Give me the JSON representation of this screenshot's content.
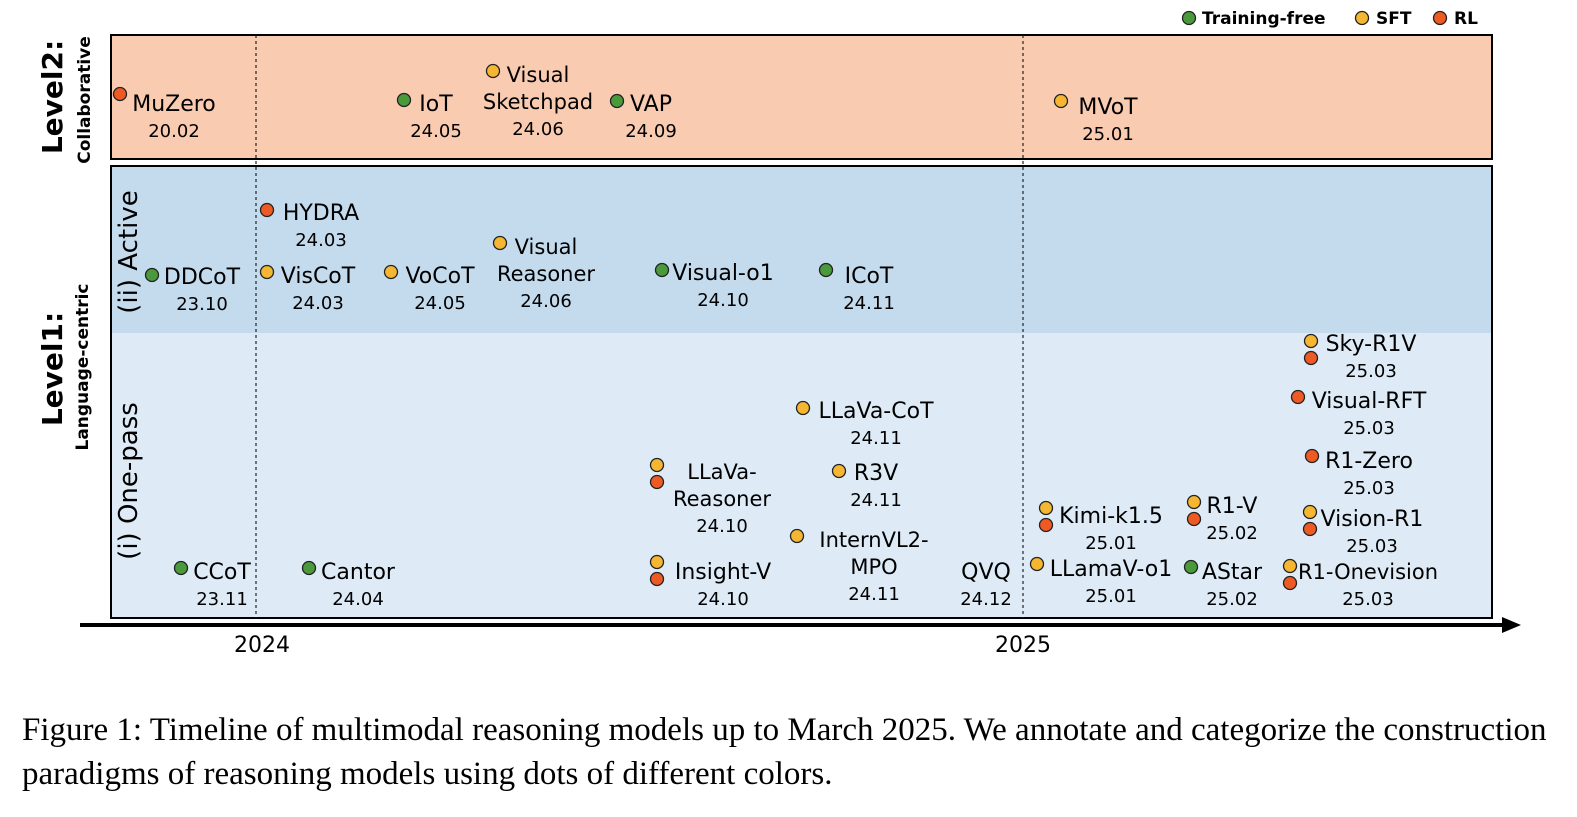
{
  "legend": [
    {
      "label": "Training-free",
      "color": "#4a9a3c"
    },
    {
      "label": "SFT",
      "color": "#f5b731"
    },
    {
      "label": "RL",
      "color": "#ee5a24"
    }
  ],
  "levels": {
    "level2": {
      "title": "Level2:",
      "subtitle": "Collaborative"
    },
    "level1": {
      "title": "Level1:",
      "subtitle": "Language-centric"
    }
  },
  "rows": {
    "active": "(ii) Active",
    "onepass": "(i) One-pass"
  },
  "axis": {
    "years": [
      "2024",
      "2025"
    ]
  },
  "colors": {
    "level2_bg": "#f9cbb0",
    "active_bg": "#c4dbee",
    "onepass_bg": "#deebf6"
  },
  "models": [
    {
      "name": "MuZero",
      "date": "20.02",
      "dots": [
        "RL"
      ]
    },
    {
      "name": "IoT",
      "date": "24.05",
      "dots": [
        "Training-free"
      ]
    },
    {
      "name": "Visual\nSketchpad",
      "date": "24.06",
      "dots": [
        "SFT"
      ]
    },
    {
      "name": "VAP",
      "date": "24.09",
      "dots": [
        "Training-free"
      ]
    },
    {
      "name": "MVoT",
      "date": "25.01",
      "dots": [
        "SFT"
      ]
    },
    {
      "name": "HYDRA",
      "date": "24.03",
      "dots": [
        "RL"
      ]
    },
    {
      "name": "DDCoT",
      "date": "23.10",
      "dots": [
        "Training-free"
      ]
    },
    {
      "name": "VisCoT",
      "date": "24.03",
      "dots": [
        "SFT"
      ]
    },
    {
      "name": "VoCoT",
      "date": "24.05",
      "dots": [
        "SFT"
      ]
    },
    {
      "name": "Visual\nReasoner",
      "date": "24.06",
      "dots": [
        "SFT"
      ]
    },
    {
      "name": "Visual-o1",
      "date": "24.10",
      "dots": [
        "Training-free"
      ]
    },
    {
      "name": "ICoT",
      "date": "24.11",
      "dots": [
        "Training-free"
      ]
    },
    {
      "name": "Sky-R1V",
      "date": "25.03",
      "dots": [
        "SFT",
        "RL"
      ]
    },
    {
      "name": "Visual-RFT",
      "date": "25.03",
      "dots": [
        "RL"
      ]
    },
    {
      "name": "LLaVa-CoT",
      "date": "24.11",
      "dots": [
        "SFT"
      ]
    },
    {
      "name": "R1-Zero",
      "date": "25.03",
      "dots": [
        "RL"
      ]
    },
    {
      "name": "LLaVa-\nReasoner",
      "date": "24.10",
      "dots": [
        "SFT",
        "RL"
      ]
    },
    {
      "name": "R3V",
      "date": "24.11",
      "dots": [
        "SFT"
      ]
    },
    {
      "name": "Kimi-k1.5",
      "date": "25.01",
      "dots": [
        "SFT",
        "RL"
      ]
    },
    {
      "name": "R1-V",
      "date": "25.02",
      "dots": [
        "SFT",
        "RL"
      ]
    },
    {
      "name": "Vision-R1",
      "date": "25.03",
      "dots": [
        "SFT",
        "RL"
      ]
    },
    {
      "name": "InternVL2-\nMPO",
      "date": "24.11",
      "dots": [
        "SFT"
      ]
    },
    {
      "name": "CCoT",
      "date": "23.11",
      "dots": [
        "Training-free"
      ]
    },
    {
      "name": "Cantor",
      "date": "24.04",
      "dots": [
        "Training-free"
      ]
    },
    {
      "name": "Insight-V",
      "date": "24.10",
      "dots": [
        "SFT",
        "RL"
      ]
    },
    {
      "name": "QVQ",
      "date": "24.12",
      "dots": []
    },
    {
      "name": "LLamaV-o1",
      "date": "25.01",
      "dots": [
        "SFT"
      ]
    },
    {
      "name": "AStar",
      "date": "25.02",
      "dots": [
        "Training-free"
      ]
    },
    {
      "name": "R1-Onevision",
      "date": "25.03",
      "dots": [
        "SFT",
        "RL"
      ]
    }
  ],
  "caption": "Figure 1: Timeline of multimodal reasoning models up to March 2025. We annotate and categorize the construction paradigms of reasoning models using dots of different colors."
}
